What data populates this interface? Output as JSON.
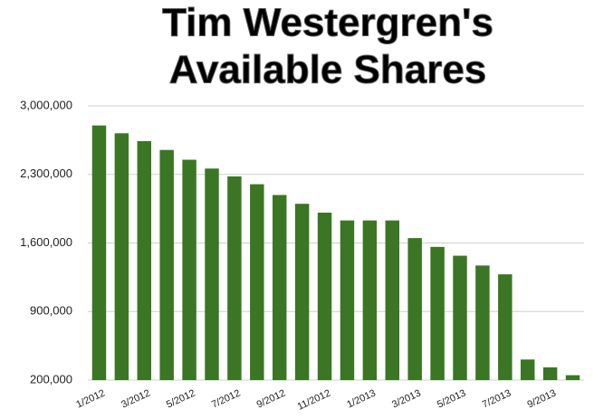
{
  "chart_data": {
    "type": "bar",
    "title_lines": [
      "Tim Westergren's",
      "Available Shares"
    ],
    "categories": [
      "1/2012",
      null,
      "3/2012",
      null,
      "5/2012",
      null,
      "7/2012",
      null,
      "9/2012",
      null,
      "11/2012",
      null,
      "1/2013",
      null,
      "3/2013",
      null,
      "5/2013",
      null,
      "7/2013",
      null,
      "9/2013",
      null
    ],
    "values": [
      2800000,
      2720000,
      2640000,
      2550000,
      2450000,
      2360000,
      2280000,
      2200000,
      2090000,
      2000000,
      1910000,
      1830000,
      1830000,
      1830000,
      1650000,
      1560000,
      1470000,
      1370000,
      1280000,
      410000,
      330000,
      250000
    ],
    "color": "#3a7623",
    "ylim": [
      200000,
      3000000
    ],
    "yticks": [
      {
        "value": 200000,
        "label": "200,000"
      },
      {
        "value": 900000,
        "label": "900,000"
      },
      {
        "value": 1600000,
        "label": "1,600,000"
      },
      {
        "value": 2300000,
        "label": "2,300,000"
      },
      {
        "value": 3000000,
        "label": "3,000,000"
      }
    ],
    "grid": true
  }
}
